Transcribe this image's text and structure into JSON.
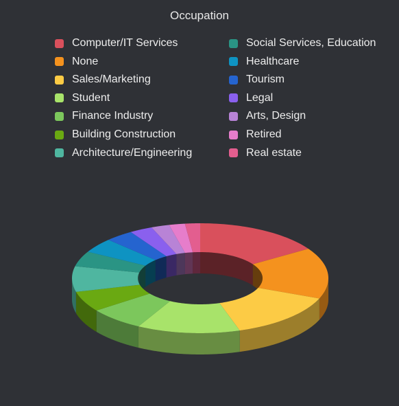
{
  "chart_data": {
    "type": "pie",
    "variant": "3d-donut",
    "title": "Occupation",
    "legend_placement": "top",
    "slices": [
      {
        "name": "Computer/IT Services",
        "value": 16.0,
        "color": "#d9505c"
      },
      {
        "name": "None",
        "value": 15.0,
        "color": "#f4921e"
      },
      {
        "name": "Sales/Marketing",
        "value": 14.0,
        "color": "#fccb45"
      },
      {
        "name": "Student",
        "value": 13.0,
        "color": "#a8e36a"
      },
      {
        "name": "Finance Industry",
        "value": 7.0,
        "color": "#7cc75c"
      },
      {
        "name": "Building Construction",
        "value": 6.0,
        "color": "#6aa912"
      },
      {
        "name": "Architecture/Engineering",
        "value": 7.5,
        "color": "#4fb6a0"
      },
      {
        "name": "Social Services, Education",
        "value": 4.5,
        "color": "#2a9484"
      },
      {
        "name": "Healthcare",
        "value": 4.3,
        "color": "#0e93c2"
      },
      {
        "name": "Tourism",
        "value": 3.6,
        "color": "#2564cf"
      },
      {
        "name": "Legal",
        "value": 2.9,
        "color": "#8a60ee"
      },
      {
        "name": "Arts, Design",
        "value": 2.3,
        "color": "#b883d6"
      },
      {
        "name": "Retired",
        "value": 2.0,
        "color": "#e67dcb"
      },
      {
        "name": "Real estate",
        "value": 1.9,
        "color": "#e35e8f"
      }
    ]
  }
}
